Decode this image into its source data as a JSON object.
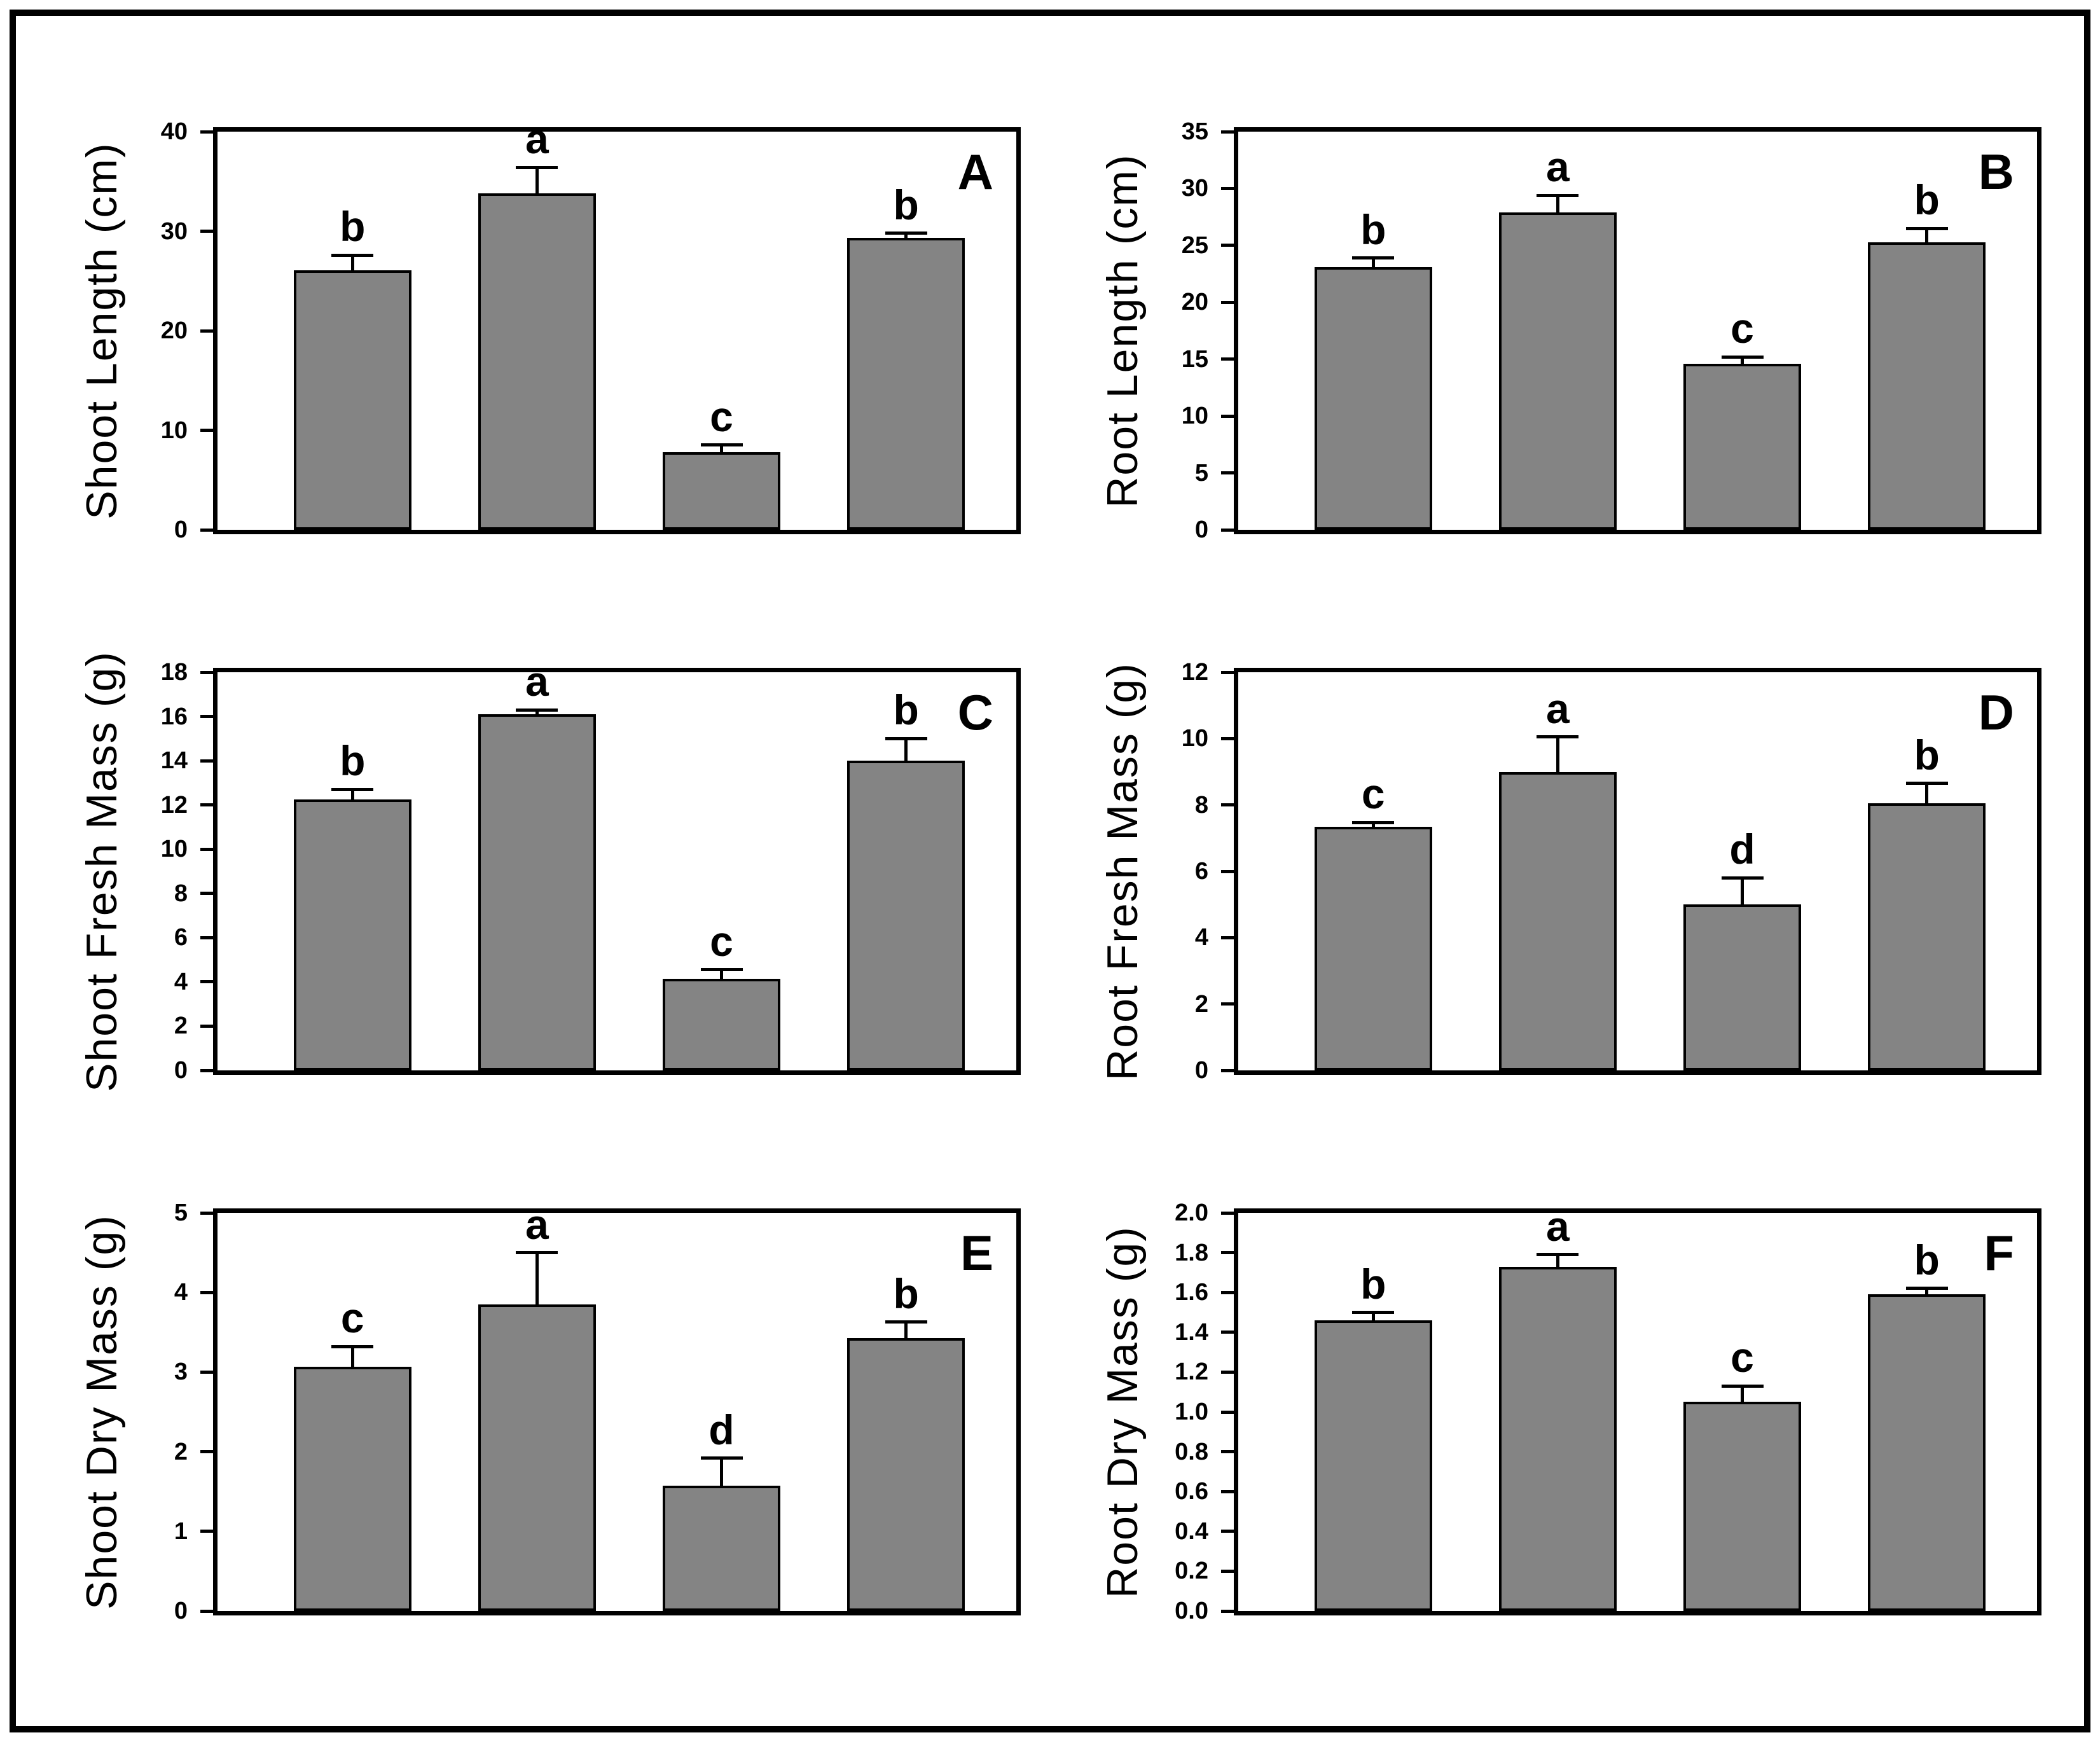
{
  "figure": {
    "background_color": "#ffffff",
    "outer_border_color": "#000000",
    "bar_fill_color": "#848484",
    "bar_border_color": "#000000",
    "layout": "2 columns x 3 rows",
    "grid_lines": false,
    "legend": "none"
  },
  "chart_data": [
    {
      "type": "bar",
      "panel_label": "A",
      "ylabel": "Shoot Length (cm)",
      "ylim": [
        0,
        40
      ],
      "ytick_step": 10,
      "tick_decimals": 0,
      "values": [
        26.1,
        33.8,
        7.8,
        29.3
      ],
      "errors": [
        1.5,
        2.6,
        0.7,
        0.5
      ],
      "sig_letters": [
        "b",
        "a",
        "c",
        "b"
      ]
    },
    {
      "type": "bar",
      "panel_label": "B",
      "ylabel": "Root Length (cm)",
      "ylim": [
        0,
        35
      ],
      "ytick_step": 5,
      "tick_decimals": 0,
      "values": [
        23.1,
        27.9,
        14.6,
        25.3
      ],
      "errors": [
        0.8,
        1.5,
        0.6,
        1.2
      ],
      "sig_letters": [
        "b",
        "a",
        "c",
        "b"
      ]
    },
    {
      "type": "bar",
      "panel_label": "C",
      "ylabel": "Shoot Fresh Mass (g)",
      "ylim": [
        0,
        18
      ],
      "ytick_step": 2,
      "tick_decimals": 0,
      "values": [
        12.25,
        16.1,
        4.15,
        14.0
      ],
      "errors": [
        0.45,
        0.2,
        0.4,
        1.0
      ],
      "sig_letters": [
        "b",
        "a",
        "c",
        "b"
      ]
    },
    {
      "type": "bar",
      "panel_label": "D",
      "ylabel": "Root Fresh Mass (g)",
      "ylim": [
        0,
        12
      ],
      "ytick_step": 2,
      "tick_decimals": 0,
      "values": [
        7.35,
        9.0,
        5.0,
        8.05
      ],
      "errors": [
        0.12,
        1.05,
        0.8,
        0.6
      ],
      "sig_letters": [
        "c",
        "a",
        "d",
        "b"
      ]
    },
    {
      "type": "bar",
      "panel_label": "E",
      "ylabel": "Shoot Dry Mass (g)",
      "ylim": [
        0,
        5
      ],
      "ytick_step": 1,
      "tick_decimals": 0,
      "values": [
        3.07,
        3.85,
        1.57,
        3.43
      ],
      "errors": [
        0.25,
        0.65,
        0.35,
        0.2
      ],
      "sig_letters": [
        "c",
        "a",
        "d",
        "b"
      ]
    },
    {
      "type": "bar",
      "panel_label": "F",
      "ylabel": "Root Dry Mass (g)",
      "ylim": [
        0,
        2.0
      ],
      "ytick_step": 0.2,
      "tick_decimals": 1,
      "values": [
        1.46,
        1.73,
        1.05,
        1.59
      ],
      "errors": [
        0.04,
        0.06,
        0.08,
        0.03
      ],
      "sig_letters": [
        "b",
        "a",
        "c",
        "b"
      ]
    }
  ]
}
